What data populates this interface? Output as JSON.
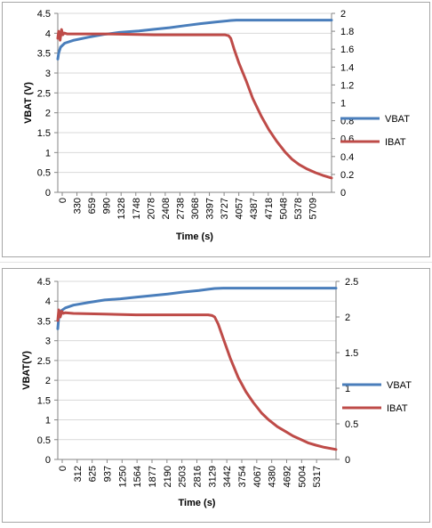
{
  "chart_data": [
    {
      "type": "line",
      "xlabel": "Time (s)",
      "ylabel": "VBAT (V)",
      "ylabel2": "",
      "ylim": [
        0,
        4.5
      ],
      "y2lim": [
        0,
        2
      ],
      "yticks": [
        "0",
        "0.5",
        "1",
        "1.5",
        "2",
        "2.5",
        "3",
        "3.5",
        "4",
        "4.5"
      ],
      "y2ticks": [
        "0",
        "0.2",
        "0.4",
        "0.6",
        "0.8",
        "1",
        "1.2",
        "1.4",
        "1.6",
        "1.8",
        "2"
      ],
      "xticks": [
        "0",
        "330",
        "659",
        "990",
        "1328",
        "1748",
        "2078",
        "2408",
        "2738",
        "3068",
        "3397",
        "3727",
        "4057",
        "4387",
        "4718",
        "5048",
        "5378",
        "5709"
      ],
      "xlim": [
        0,
        5900
      ],
      "legend": "right",
      "grid": true,
      "series": [
        {
          "name": "VBAT",
          "axis": "left",
          "color": "#4a7ebb",
          "x": [
            0,
            20,
            60,
            150,
            330,
            659,
            990,
            1328,
            1748,
            2078,
            2408,
            2738,
            3068,
            3397,
            3727,
            3850,
            4057,
            4387,
            4718,
            5048,
            5378,
            5709,
            5900
          ],
          "y": [
            3.35,
            3.5,
            3.65,
            3.75,
            3.82,
            3.9,
            3.97,
            4.02,
            4.06,
            4.1,
            4.14,
            4.19,
            4.24,
            4.28,
            4.32,
            4.33,
            4.33,
            4.33,
            4.33,
            4.33,
            4.33,
            4.33,
            4.33
          ]
        },
        {
          "name": "IBAT",
          "axis": "right",
          "color": "#be4b48",
          "x": [
            0,
            20,
            50,
            80,
            110,
            140,
            200,
            330,
            990,
            2078,
            3068,
            3600,
            3680,
            3727,
            3800,
            3900,
            4057,
            4200,
            4387,
            4550,
            4718,
            4900,
            5048,
            5200,
            5378,
            5550,
            5709,
            5900
          ],
          "y": [
            1.72,
            1.8,
            1.7,
            1.82,
            1.76,
            1.78,
            1.77,
            1.77,
            1.77,
            1.76,
            1.76,
            1.76,
            1.75,
            1.72,
            1.6,
            1.45,
            1.25,
            1.05,
            0.85,
            0.7,
            0.57,
            0.45,
            0.37,
            0.31,
            0.26,
            0.22,
            0.19,
            0.16
          ]
        }
      ]
    },
    {
      "type": "line",
      "xlabel": "Time (s)",
      "ylabel": "VBAT(V)",
      "ylabel2": "",
      "ylim": [
        0,
        4.5
      ],
      "y2lim": [
        0,
        2.5
      ],
      "yticks": [
        "0",
        "0.5",
        "1",
        "1.5",
        "2",
        "2.5",
        "3",
        "3.5",
        "4",
        "4.5"
      ],
      "y2ticks": [
        "0",
        "0.5",
        "1",
        "1.5",
        "2",
        "2.5"
      ],
      "xticks": [
        "0",
        "312",
        "625",
        "937",
        "1250",
        "1564",
        "1877",
        "2190",
        "2503",
        "2816",
        "3129",
        "3442",
        "3754",
        "4067",
        "4380",
        "4692",
        "5004",
        "5317"
      ],
      "xlim": [
        0,
        5550
      ],
      "legend": "right",
      "grid": true,
      "series": [
        {
          "name": "VBAT",
          "axis": "left",
          "color": "#4a7ebb",
          "x": [
            0,
            20,
            60,
            150,
            312,
            625,
            937,
            1250,
            1564,
            1877,
            2190,
            2503,
            2816,
            3000,
            3129,
            3300,
            3442,
            3754,
            4067,
            4380,
            4692,
            5004,
            5317,
            5550
          ],
          "y": [
            3.3,
            3.6,
            3.75,
            3.83,
            3.9,
            3.97,
            4.03,
            4.06,
            4.1,
            4.14,
            4.18,
            4.23,
            4.27,
            4.3,
            4.32,
            4.33,
            4.33,
            4.33,
            4.33,
            4.33,
            4.33,
            4.33,
            4.33,
            4.33
          ]
        },
        {
          "name": "IBAT",
          "axis": "right",
          "color": "#be4b48",
          "x": [
            0,
            20,
            50,
            80,
            110,
            150,
            312,
            937,
            1564,
            2190,
            2816,
            3000,
            3080,
            3129,
            3200,
            3300,
            3442,
            3600,
            3754,
            3900,
            4067,
            4200,
            4380,
            4550,
            4692,
            4850,
            5004,
            5150,
            5317,
            5550
          ],
          "y": [
            1.95,
            2.1,
            2.0,
            2.08,
            2.05,
            2.06,
            2.05,
            2.04,
            2.03,
            2.03,
            2.03,
            2.03,
            2.02,
            2.0,
            1.9,
            1.7,
            1.42,
            1.15,
            0.95,
            0.8,
            0.65,
            0.56,
            0.46,
            0.39,
            0.33,
            0.28,
            0.23,
            0.2,
            0.17,
            0.14
          ]
        }
      ]
    }
  ]
}
